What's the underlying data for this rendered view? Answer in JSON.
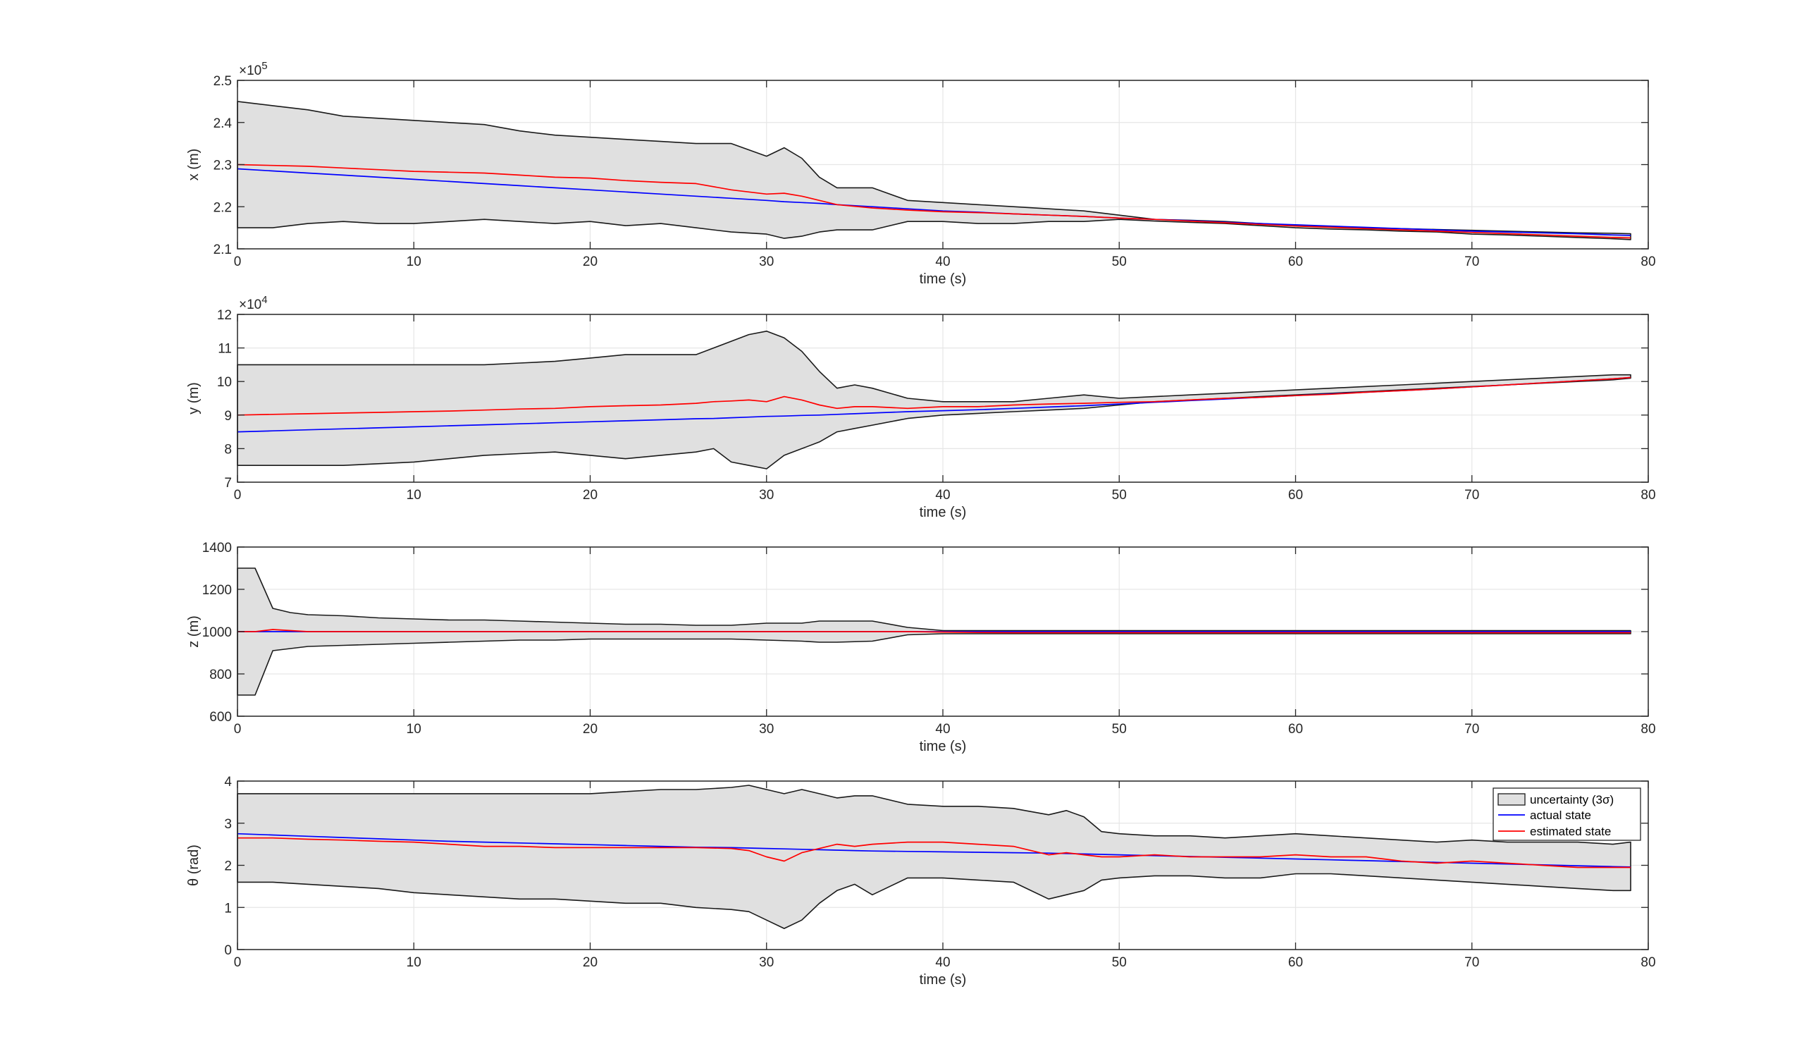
{
  "legend": {
    "placement": "top-right of last panel",
    "entries": [
      {
        "label": "uncertainty (3σ)",
        "swatch": "fill"
      },
      {
        "label": "actual state",
        "swatch": "blue-line"
      },
      {
        "label": "estimated state",
        "swatch": "red-line"
      }
    ]
  },
  "colors": {
    "band_fill": "#e0e0e0",
    "band_edge": "#1a1a1a",
    "actual": "#0000ff",
    "estimated": "#ff0000",
    "grid": "#e6e6e6",
    "axis": "#262626"
  },
  "chart_data": [
    {
      "type": "line",
      "xlabel": "time (s)",
      "ylabel": "x (m)",
      "exponent": "×10",
      "exponent_power": "5",
      "xlim": [
        0,
        80
      ],
      "ylim": [
        2.1,
        2.5
      ],
      "xticks": [
        "0",
        "10",
        "20",
        "30",
        "40",
        "50",
        "60",
        "70",
        "80"
      ],
      "yticks": [
        "2.1",
        "2.2",
        "2.3",
        "2.4",
        "2.5"
      ],
      "grid": true,
      "x": [
        0,
        2,
        4,
        6,
        8,
        10,
        12,
        14,
        16,
        18,
        20,
        22,
        24,
        26,
        28,
        30,
        31,
        32,
        33,
        34,
        36,
        38,
        40,
        42,
        44,
        46,
        48,
        50,
        52,
        54,
        56,
        58,
        60,
        62,
        64,
        66,
        68,
        70,
        72,
        74,
        76,
        78,
        79
      ],
      "upper": [
        2.45,
        2.44,
        2.43,
        2.415,
        2.41,
        2.405,
        2.4,
        2.395,
        2.38,
        2.37,
        2.365,
        2.36,
        2.355,
        2.35,
        2.35,
        2.32,
        2.34,
        2.315,
        2.27,
        2.245,
        2.245,
        2.215,
        2.21,
        2.205,
        2.2,
        2.195,
        2.19,
        2.18,
        2.17,
        2.168,
        2.165,
        2.16,
        2.155,
        2.152,
        2.15,
        2.148,
        2.146,
        2.144,
        2.142,
        2.14,
        2.138,
        2.137,
        2.136
      ],
      "lower": [
        2.15,
        2.15,
        2.16,
        2.165,
        2.16,
        2.16,
        2.165,
        2.17,
        2.165,
        2.16,
        2.165,
        2.155,
        2.16,
        2.15,
        2.14,
        2.135,
        2.125,
        2.13,
        2.14,
        2.145,
        2.145,
        2.165,
        2.165,
        2.16,
        2.16,
        2.165,
        2.165,
        2.17,
        2.166,
        2.163,
        2.16,
        2.155,
        2.15,
        2.147,
        2.145,
        2.142,
        2.14,
        2.135,
        2.133,
        2.13,
        2.127,
        2.124,
        2.122
      ],
      "actual": [
        2.29,
        2.285,
        2.28,
        2.275,
        2.27,
        2.265,
        2.26,
        2.255,
        2.25,
        2.245,
        2.24,
        2.235,
        2.23,
        2.225,
        2.22,
        2.215,
        2.212,
        2.21,
        2.208,
        2.205,
        2.2,
        2.195,
        2.19,
        2.187,
        2.183,
        2.18,
        2.177,
        2.173,
        2.17,
        2.167,
        2.163,
        2.16,
        2.157,
        2.154,
        2.151,
        2.148,
        2.145,
        2.142,
        2.14,
        2.138,
        2.136,
        2.133,
        2.132
      ],
      "estimated": [
        2.3,
        2.298,
        2.296,
        2.292,
        2.288,
        2.284,
        2.282,
        2.28,
        2.275,
        2.27,
        2.268,
        2.262,
        2.258,
        2.255,
        2.24,
        2.23,
        2.232,
        2.225,
        2.215,
        2.205,
        2.197,
        2.192,
        2.188,
        2.186,
        2.183,
        2.18,
        2.177,
        2.173,
        2.17,
        2.166,
        2.162,
        2.158,
        2.154,
        2.151,
        2.148,
        2.145,
        2.142,
        2.139,
        2.136,
        2.133,
        2.13,
        2.127,
        2.126
      ]
    },
    {
      "type": "line",
      "xlabel": "time (s)",
      "ylabel": "y (m)",
      "exponent": "×10",
      "exponent_power": "4",
      "xlim": [
        0,
        80
      ],
      "ylim": [
        7,
        12
      ],
      "xticks": [
        "0",
        "10",
        "20",
        "30",
        "40",
        "50",
        "60",
        "70",
        "80"
      ],
      "yticks": [
        "7",
        "8",
        "9",
        "10",
        "11",
        "12"
      ],
      "grid": true,
      "x": [
        0,
        2,
        4,
        6,
        8,
        10,
        12,
        14,
        16,
        18,
        20,
        22,
        24,
        26,
        27,
        28,
        29,
        30,
        31,
        32,
        33,
        34,
        35,
        36,
        38,
        40,
        42,
        44,
        46,
        48,
        50,
        52,
        54,
        56,
        58,
        60,
        62,
        64,
        66,
        68,
        70,
        72,
        74,
        76,
        78,
        79
      ],
      "upper": [
        10.5,
        10.5,
        10.5,
        10.5,
        10.5,
        10.5,
        10.5,
        10.5,
        10.55,
        10.6,
        10.7,
        10.8,
        10.8,
        10.8,
        11.0,
        11.2,
        11.4,
        11.5,
        11.3,
        10.9,
        10.3,
        9.8,
        9.9,
        9.8,
        9.5,
        9.4,
        9.4,
        9.4,
        9.5,
        9.6,
        9.5,
        9.55,
        9.6,
        9.65,
        9.7,
        9.75,
        9.8,
        9.85,
        9.9,
        9.95,
        10.0,
        10.05,
        10.1,
        10.15,
        10.2,
        10.2
      ],
      "lower": [
        7.5,
        7.5,
        7.5,
        7.5,
        7.55,
        7.6,
        7.7,
        7.8,
        7.85,
        7.9,
        7.8,
        7.7,
        7.8,
        7.9,
        8.0,
        7.6,
        7.5,
        7.4,
        7.8,
        8.0,
        8.2,
        8.5,
        8.6,
        8.7,
        8.9,
        9.0,
        9.05,
        9.1,
        9.15,
        9.2,
        9.3,
        9.4,
        9.45,
        9.5,
        9.55,
        9.6,
        9.65,
        9.7,
        9.75,
        9.8,
        9.85,
        9.9,
        9.95,
        10.0,
        10.05,
        10.1
      ],
      "actual": [
        8.5,
        8.53,
        8.56,
        8.59,
        8.62,
        8.65,
        8.68,
        8.71,
        8.74,
        8.77,
        8.8,
        8.83,
        8.86,
        8.89,
        8.9,
        8.92,
        8.94,
        8.96,
        8.97,
        8.99,
        9.0,
        9.02,
        9.04,
        9.06,
        9.1,
        9.13,
        9.16,
        9.2,
        9.24,
        9.28,
        9.33,
        9.38,
        9.43,
        9.48,
        9.53,
        9.58,
        9.63,
        9.68,
        9.73,
        9.78,
        9.84,
        9.9,
        9.96,
        10.02,
        10.08,
        10.12
      ],
      "estimated": [
        9.0,
        9.02,
        9.04,
        9.06,
        9.08,
        9.1,
        9.12,
        9.15,
        9.18,
        9.2,
        9.25,
        9.28,
        9.3,
        9.35,
        9.4,
        9.42,
        9.45,
        9.4,
        9.55,
        9.45,
        9.3,
        9.2,
        9.25,
        9.25,
        9.2,
        9.25,
        9.25,
        9.3,
        9.33,
        9.35,
        9.38,
        9.4,
        9.45,
        9.5,
        9.53,
        9.58,
        9.62,
        9.68,
        9.73,
        9.78,
        9.84,
        9.9,
        9.96,
        10.02,
        10.08,
        10.12
      ]
    },
    {
      "type": "line",
      "xlabel": "time (s)",
      "ylabel": "z (m)",
      "exponent": "",
      "exponent_power": "",
      "xlim": [
        0,
        80
      ],
      "ylim": [
        600,
        1400
      ],
      "xticks": [
        "0",
        "10",
        "20",
        "30",
        "40",
        "50",
        "60",
        "70",
        "80"
      ],
      "yticks": [
        "600",
        "800",
        "1000",
        "1200",
        "1400"
      ],
      "grid": true,
      "x": [
        0,
        1,
        2,
        3,
        4,
        6,
        8,
        10,
        12,
        14,
        16,
        18,
        20,
        22,
        24,
        26,
        28,
        30,
        32,
        33,
        34,
        36,
        38,
        40,
        42,
        44,
        46,
        48,
        50,
        52,
        54,
        56,
        58,
        60,
        62,
        64,
        66,
        68,
        70,
        72,
        74,
        76,
        78,
        79
      ],
      "upper": [
        1300,
        1300,
        1110,
        1090,
        1080,
        1075,
        1065,
        1060,
        1055,
        1055,
        1050,
        1045,
        1040,
        1035,
        1035,
        1030,
        1030,
        1040,
        1040,
        1050,
        1050,
        1050,
        1020,
        1005,
        1005,
        1005,
        1005,
        1005,
        1005,
        1005,
        1005,
        1005,
        1005,
        1005,
        1005,
        1005,
        1005,
        1005,
        1005,
        1005,
        1005,
        1005,
        1005,
        1005
      ],
      "lower": [
        700,
        700,
        910,
        920,
        930,
        935,
        940,
        945,
        950,
        955,
        960,
        960,
        965,
        965,
        965,
        965,
        965,
        960,
        955,
        950,
        950,
        955,
        985,
        990,
        990,
        990,
        990,
        990,
        990,
        990,
        990,
        990,
        990,
        990,
        990,
        990,
        990,
        990,
        990,
        990,
        990,
        990,
        990,
        990
      ],
      "actual": [
        1000,
        1000,
        1000,
        1000,
        1000,
        1000,
        1000,
        1000,
        1000,
        1000,
        1000,
        1000,
        1000,
        1000,
        1000,
        1000,
        1000,
        1000,
        1000,
        1000,
        1000,
        1000,
        1000,
        1000,
        1000,
        1000,
        1000,
        1000,
        1000,
        1000,
        1000,
        1000,
        1000,
        1000,
        1000,
        1000,
        1000,
        1000,
        1000,
        1000,
        1000,
        1000,
        1000,
        1000
      ],
      "estimated": [
        1000,
        1000,
        1010,
        1005,
        1000,
        1000,
        1000,
        1000,
        1000,
        1000,
        1000,
        1000,
        1000,
        1000,
        1000,
        1000,
        1000,
        1000,
        1000,
        1000,
        1000,
        1000,
        1000,
        998,
        996,
        995,
        995,
        995,
        995,
        995,
        995,
        995,
        995,
        995,
        995,
        995,
        995,
        995,
        995,
        995,
        995,
        995,
        995,
        995
      ]
    },
    {
      "type": "line",
      "xlabel": "time (s)",
      "ylabel": "θ (rad)",
      "exponent": "",
      "exponent_power": "",
      "xlim": [
        0,
        80
      ],
      "ylim": [
        0,
        4
      ],
      "xticks": [
        "0",
        "10",
        "20",
        "30",
        "40",
        "50",
        "60",
        "70",
        "80"
      ],
      "yticks": [
        "0",
        "1",
        "2",
        "3",
        "4"
      ],
      "grid": true,
      "x": [
        0,
        2,
        4,
        6,
        8,
        10,
        12,
        14,
        16,
        18,
        20,
        22,
        24,
        26,
        28,
        29,
        30,
        31,
        32,
        33,
        34,
        35,
        36,
        38,
        40,
        42,
        44,
        46,
        47,
        48,
        49,
        50,
        52,
        54,
        56,
        58,
        60,
        62,
        64,
        66,
        68,
        70,
        72,
        74,
        76,
        78,
        79
      ],
      "upper": [
        3.7,
        3.7,
        3.7,
        3.7,
        3.7,
        3.7,
        3.7,
        3.7,
        3.7,
        3.7,
        3.7,
        3.75,
        3.8,
        3.8,
        3.85,
        3.9,
        3.8,
        3.7,
        3.8,
        3.7,
        3.6,
        3.65,
        3.65,
        3.45,
        3.4,
        3.4,
        3.35,
        3.2,
        3.3,
        3.15,
        2.8,
        2.75,
        2.7,
        2.7,
        2.65,
        2.7,
        2.75,
        2.7,
        2.65,
        2.6,
        2.55,
        2.6,
        2.55,
        2.55,
        2.55,
        2.5,
        2.55
      ],
      "lower": [
        1.6,
        1.6,
        1.55,
        1.5,
        1.45,
        1.35,
        1.3,
        1.25,
        1.2,
        1.2,
        1.15,
        1.1,
        1.1,
        1.0,
        0.95,
        0.9,
        0.7,
        0.5,
        0.7,
        1.1,
        1.4,
        1.55,
        1.3,
        1.7,
        1.7,
        1.65,
        1.6,
        1.2,
        1.3,
        1.4,
        1.65,
        1.7,
        1.75,
        1.75,
        1.7,
        1.7,
        1.8,
        1.8,
        1.75,
        1.7,
        1.65,
        1.6,
        1.55,
        1.5,
        1.45,
        1.4,
        1.4
      ],
      "actual": [
        2.75,
        2.72,
        2.69,
        2.66,
        2.63,
        2.6,
        2.57,
        2.55,
        2.53,
        2.51,
        2.49,
        2.47,
        2.45,
        2.43,
        2.42,
        2.41,
        2.4,
        2.39,
        2.38,
        2.37,
        2.36,
        2.35,
        2.34,
        2.33,
        2.32,
        2.31,
        2.3,
        2.29,
        2.28,
        2.27,
        2.26,
        2.25,
        2.23,
        2.21,
        2.19,
        2.17,
        2.15,
        2.13,
        2.11,
        2.09,
        2.07,
        2.05,
        2.03,
        2.01,
        1.99,
        1.97,
        1.96
      ],
      "estimated": [
        2.65,
        2.65,
        2.62,
        2.6,
        2.57,
        2.55,
        2.5,
        2.45,
        2.45,
        2.42,
        2.42,
        2.42,
        2.42,
        2.42,
        2.4,
        2.35,
        2.2,
        2.1,
        2.3,
        2.4,
        2.5,
        2.45,
        2.5,
        2.55,
        2.55,
        2.5,
        2.45,
        2.25,
        2.3,
        2.25,
        2.2,
        2.2,
        2.25,
        2.2,
        2.2,
        2.2,
        2.25,
        2.2,
        2.2,
        2.1,
        2.05,
        2.1,
        2.05,
        2.0,
        1.95,
        1.95,
        1.95
      ]
    }
  ]
}
